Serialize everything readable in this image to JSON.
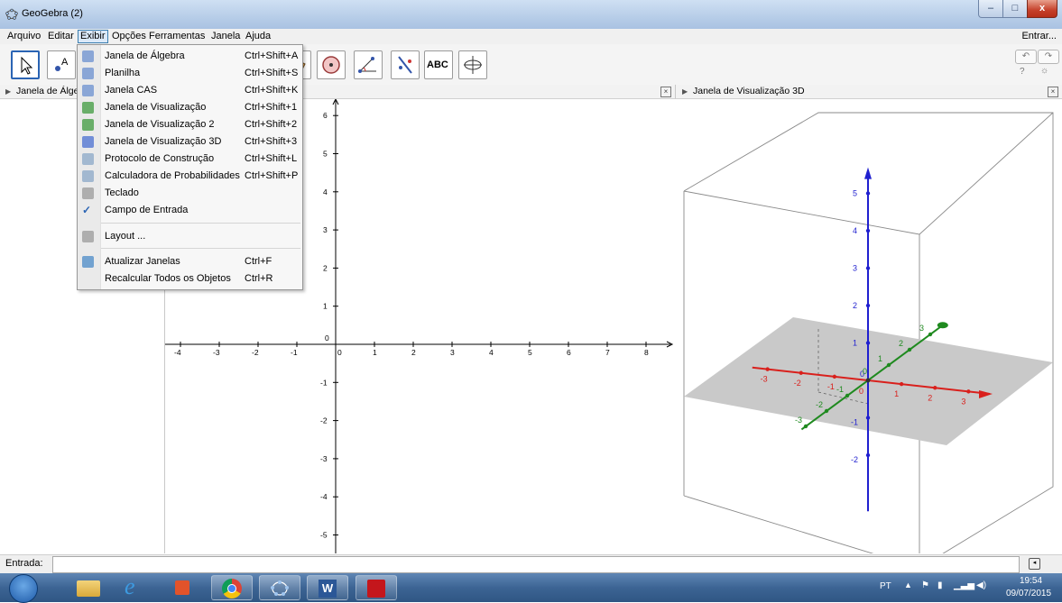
{
  "window": {
    "title": "GeoGebra (2)",
    "controls": {
      "minimize": "–",
      "maximize": "□",
      "close": "x"
    }
  },
  "menubar": {
    "items": [
      "Arquivo",
      "Editar",
      "Exibir",
      "Opções",
      "Ferramentas",
      "Janela",
      "Ajuda"
    ],
    "right_label": "Entrar..."
  },
  "toolbar": {
    "tools": [
      "move-tool",
      "point-tool",
      "line-tool",
      "perpendicular-tool",
      "polygon-tool",
      "circle-tool",
      "angle-tool",
      "reflect-tool",
      "text-tool",
      "rotate-view-tool"
    ],
    "text_tool_label": "ABC",
    "undo_label": "↶",
    "redo_label": "↷",
    "help_label": "?",
    "settings_label": "☼"
  },
  "views": {
    "algebra_title": "Janela de Álgebra",
    "view3d_title": "Janela de Visualização 3D"
  },
  "exibir_menu": {
    "items": [
      {
        "label": "Janela de Álgebra",
        "shortcut": "Ctrl+Shift+A",
        "icon": "algebra-icon"
      },
      {
        "label": "Planilha",
        "shortcut": "Ctrl+Shift+S",
        "icon": "spreadsheet-icon"
      },
      {
        "label": "Janela CAS",
        "shortcut": "Ctrl+Shift+K",
        "icon": "cas-icon"
      },
      {
        "label": "Janela de Visualização",
        "shortcut": "Ctrl+Shift+1",
        "icon": "graphics-icon"
      },
      {
        "label": "Janela de Visualização 2",
        "shortcut": "Ctrl+Shift+2",
        "icon": "graphics2-icon"
      },
      {
        "label": "Janela de Visualização 3D",
        "shortcut": "Ctrl+Shift+3",
        "icon": "graphics3d-icon"
      },
      {
        "label": "Protocolo de Construção",
        "shortcut": "Ctrl+Shift+L",
        "icon": "construction-protocol-icon"
      },
      {
        "label": "Calculadora de Probabilidades",
        "shortcut": "Ctrl+Shift+P",
        "icon": "probability-icon"
      },
      {
        "label": "Teclado",
        "shortcut": "",
        "icon": "keyboard-icon"
      },
      {
        "label": "Campo de Entrada",
        "shortcut": "",
        "icon": "checkmark-icon"
      },
      {
        "label": "Layout ...",
        "shortcut": "",
        "icon": "layout-gear-icon"
      },
      {
        "label": "Atualizar Janelas",
        "shortcut": "Ctrl+F",
        "icon": "refresh-icon"
      },
      {
        "label": "Recalcular Todos os Objetos",
        "shortcut": "Ctrl+R",
        "icon": ""
      }
    ]
  },
  "graphics2d": {
    "x_ticks": [
      "-4",
      "-3",
      "-2",
      "-1",
      "0",
      "1",
      "2",
      "3",
      "4",
      "5",
      "6",
      "7",
      "8"
    ],
    "y_ticks": [
      "6",
      "5",
      "4",
      "3",
      "2",
      "1",
      "-1",
      "-2",
      "-3",
      "-4",
      "-5"
    ],
    "origin_y_label": "0"
  },
  "graphics3d": {
    "z_labels": [
      "5",
      "4",
      "3",
      "2",
      "1",
      "-1",
      "-2"
    ],
    "x_labels": [
      "-3",
      "-2",
      "-1",
      "1",
      "2",
      "3"
    ],
    "y_labels": [
      "-3",
      "-2",
      "-1",
      "1",
      "2",
      "3"
    ],
    "origin_labels": [
      "0",
      "0",
      "0"
    ],
    "colors": {
      "x_axis": "#d9201c",
      "y_axis": "#1f8a1f",
      "z_axis": "#1f1fcf",
      "plane": "#c9c9c9"
    }
  },
  "inputbar": {
    "label": "Entrada:",
    "value": ""
  },
  "taskbar": {
    "apps": [
      "start-orb",
      "file-explorer",
      "internet-explorer",
      "office",
      "chrome",
      "geogebra",
      "word",
      "acrobat"
    ],
    "language": "PT",
    "time": "19:54",
    "date": "09/07/2015"
  }
}
